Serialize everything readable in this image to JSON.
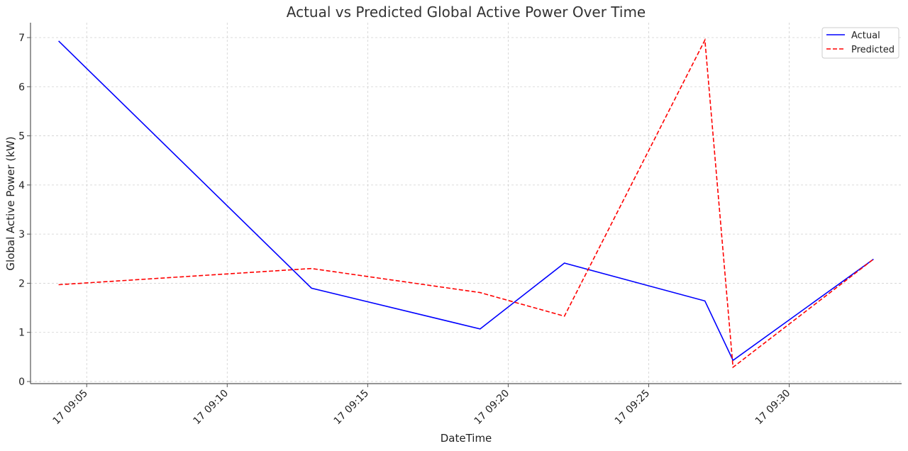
{
  "chart_data": {
    "type": "line",
    "title": "Actual vs Predicted Global Active Power Over Time",
    "xlabel": "DateTime",
    "ylabel": "Global Active Power (kW)",
    "x": [
      "17 09:04",
      "17 09:13",
      "17 09:19",
      "17 09:22",
      "17 09:27",
      "17 09:28",
      "17 09:33"
    ],
    "x_tick_labels": [
      "17 09:05",
      "17 09:10",
      "17 09:15",
      "17 09:20",
      "17 09:25",
      "17 09:30"
    ],
    "xlim": [
      "17 09:03",
      "17 09:34"
    ],
    "ylim": [
      0,
      7.3
    ],
    "y_ticks": [
      0,
      1,
      2,
      3,
      4,
      5,
      6,
      7
    ],
    "grid": true,
    "legend_position": "top-right",
    "series": [
      {
        "name": "Actual",
        "color": "#0000ff",
        "style": "solid",
        "values": [
          6.93,
          1.9,
          1.07,
          2.41,
          1.64,
          0.43,
          2.49
        ]
      },
      {
        "name": "Predicted",
        "color": "#ff0000",
        "style": "dashed",
        "values": [
          1.97,
          2.3,
          1.81,
          1.33,
          6.95,
          0.29,
          2.49
        ]
      }
    ]
  }
}
